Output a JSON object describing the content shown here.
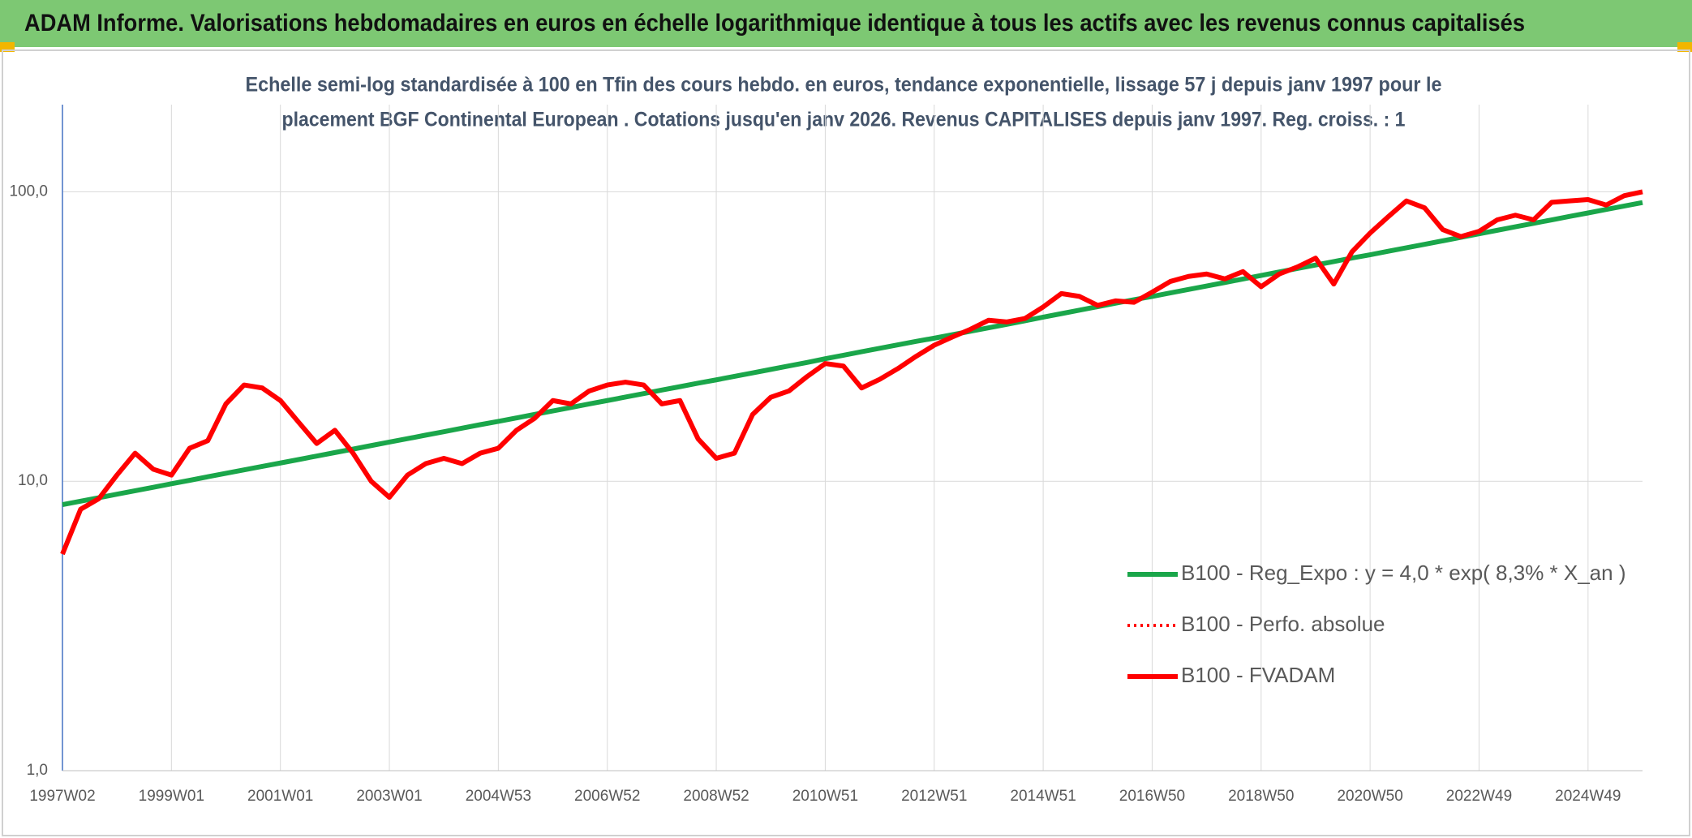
{
  "chart_data": {
    "type": "line",
    "title": "ADAM Informe. Valorisations hebdomadaires en euros en échelle logarithmique identique à tous les actifs avec les revenus connus capitalisés",
    "subtitle": [
      "Echelle semi-log standardisée à 100 en Tfin des cours hebdo. en euros, tendance exponentielle, lissage 57 j depuis janv 1997 pour le",
      "placement BGF Continental European . Cotations jusqu'en janv 2026. Revenus CAPITALISES depuis janv 1997. Reg. croiss. : 1"
    ],
    "log_y": true,
    "grid": true,
    "legend": "right",
    "ylim": [
      1,
      200
    ],
    "yticks": [
      {
        "value": 1,
        "label": "1,0"
      },
      {
        "value": 10,
        "label": "10,0"
      },
      {
        "value": 100,
        "label": "100,0"
      }
    ],
    "categories": [
      "1997W02",
      null,
      null,
      null,
      null,
      null,
      "1999W01",
      null,
      null,
      null,
      null,
      null,
      "2001W01",
      null,
      null,
      null,
      null,
      null,
      "2003W01",
      null,
      null,
      null,
      null,
      null,
      "2004W53",
      null,
      null,
      null,
      null,
      null,
      "2006W52",
      null,
      null,
      null,
      null,
      null,
      "2008W52",
      null,
      null,
      null,
      null,
      null,
      "2010W51",
      null,
      null,
      null,
      null,
      null,
      "2012W51",
      null,
      null,
      null,
      null,
      null,
      "2014W51",
      null,
      null,
      null,
      null,
      null,
      "2016W50",
      null,
      null,
      null,
      null,
      null,
      "2018W50",
      null,
      null,
      null,
      null,
      null,
      "2020W50",
      null,
      null,
      null,
      null,
      null,
      "2022W49",
      null,
      null,
      null,
      null,
      null,
      "2024W49",
      null,
      null,
      null
    ],
    "series": [
      {
        "name": "B100 - Reg_Expo : y = 4,0 * exp( 8,3% *  X_an )",
        "color": "#1aa64a",
        "style": "solid",
        "values": [
          8.3,
          8.53,
          8.77,
          9.02,
          9.27,
          9.53,
          9.8,
          10.07,
          10.36,
          10.65,
          10.95,
          11.25,
          11.56,
          11.88,
          12.22,
          12.56,
          12.91,
          13.28,
          13.65,
          14.03,
          14.43,
          14.83,
          15.25,
          15.68,
          16.1,
          16.55,
          17.02,
          17.49,
          17.98,
          18.49,
          19.0,
          19.53,
          20.08,
          20.65,
          21.22,
          21.82,
          22.4,
          23.03,
          23.67,
          24.34,
          25.02,
          25.72,
          26.5,
          27.24,
          28.01,
          28.79,
          29.6,
          30.43,
          31.2,
          32.07,
          32.97,
          33.9,
          34.85,
          35.83,
          36.9,
          37.93,
          39.0,
          40.1,
          41.22,
          42.38,
          43.5,
          44.72,
          45.97,
          47.27,
          48.59,
          49.96,
          51.4,
          52.84,
          54.32,
          55.85,
          57.41,
          59.03,
          60.6,
          62.3,
          64.05,
          65.85,
          67.69,
          69.59,
          71.6,
          73.61,
          75.67,
          77.8,
          79.98,
          82.22,
          84.5,
          86.87,
          89.3,
          91.8
        ]
      },
      {
        "name": "B100 - Perfo. absolue",
        "color": "#ff0000",
        "style": "dotted",
        "values": [
          5.6,
          8.0,
          8.7,
          10.5,
          12.5,
          11.0,
          10.5,
          13.0,
          13.8,
          18.5,
          21.5,
          21.0,
          19.0,
          16.0,
          13.5,
          15.0,
          12.5,
          10.0,
          8.8,
          10.5,
          11.5,
          12.0,
          11.5,
          12.5,
          13.0,
          15.0,
          16.5,
          19.0,
          18.5,
          20.5,
          21.5,
          22.0,
          21.5,
          18.5,
          19.0,
          14.0,
          12.0,
          12.5,
          17.0,
          19.5,
          20.5,
          23.0,
          25.5,
          25.0,
          21.0,
          22.5,
          24.5,
          27.0,
          29.5,
          31.5,
          33.5,
          36.0,
          35.5,
          36.5,
          40.0,
          44.5,
          43.5,
          40.5,
          42.0,
          41.5,
          45.0,
          49.0,
          51.0,
          52.0,
          50.0,
          53.0,
          47.0,
          52.0,
          55.0,
          59.0,
          48.0,
          62.0,
          72.0,
          82.0,
          93.0,
          88.0,
          74.0,
          70.0,
          73.0,
          80.0,
          83.0,
          80.0,
          92.0,
          93.0,
          94.0,
          90.0,
          97.0,
          100.0
        ]
      },
      {
        "name": "B100 - FVADAM",
        "color": "#ff0000",
        "style": "solid",
        "values": [
          5.6,
          8.0,
          8.7,
          10.5,
          12.5,
          11.0,
          10.5,
          13.0,
          13.8,
          18.5,
          21.5,
          21.0,
          19.0,
          16.0,
          13.5,
          15.0,
          12.5,
          10.0,
          8.8,
          10.5,
          11.5,
          12.0,
          11.5,
          12.5,
          13.0,
          15.0,
          16.5,
          19.0,
          18.5,
          20.5,
          21.5,
          22.0,
          21.5,
          18.5,
          19.0,
          14.0,
          12.0,
          12.5,
          17.0,
          19.5,
          20.5,
          23.0,
          25.5,
          25.0,
          21.0,
          22.5,
          24.5,
          27.0,
          29.5,
          31.5,
          33.5,
          36.0,
          35.5,
          36.5,
          40.0,
          44.5,
          43.5,
          40.5,
          42.0,
          41.5,
          45.0,
          49.0,
          51.0,
          52.0,
          50.0,
          53.0,
          47.0,
          52.0,
          55.0,
          59.0,
          48.0,
          62.0,
          72.0,
          82.0,
          93.0,
          88.0,
          74.0,
          70.0,
          73.0,
          80.0,
          83.0,
          80.0,
          92.0,
          93.0,
          94.0,
          90.0,
          97.0,
          100.0
        ]
      }
    ]
  }
}
